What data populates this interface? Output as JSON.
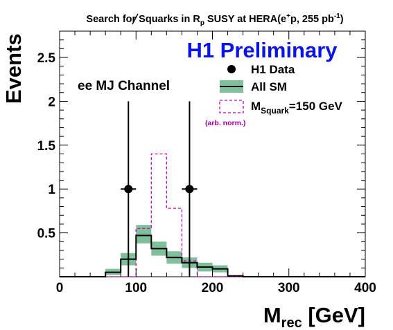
{
  "chart_data": {
    "type": "histogram",
    "title": {
      "prefix": "Search for Squarks in ",
      "rp_main": "R",
      "rp_sub": "p",
      "middle": " SUSY at HERA(e",
      "sup_plus": "+",
      "after_plus": "p, 255 pb",
      "sup_minus1": "-1",
      "end": ")"
    },
    "preliminary_label": "H1 Preliminary",
    "channel_label": "ee MJ Channel",
    "xlabel": {
      "main": "M",
      "sub": "rec",
      "unit": " [GeV]"
    },
    "ylabel": "Events",
    "xlim": [
      0,
      400
    ],
    "ylim": [
      0,
      2.8
    ],
    "xticks": [
      {
        "value": 0,
        "label": "0"
      },
      {
        "value": 100,
        "label": "100"
      },
      {
        "value": 200,
        "label": "200"
      },
      {
        "value": 300,
        "label": "300"
      },
      {
        "value": 400,
        "label": "400"
      }
    ],
    "yticks": [
      {
        "value": 0.5,
        "label": "0.5"
      },
      {
        "value": 1,
        "label": "1"
      },
      {
        "value": 1.5,
        "label": "1.5"
      },
      {
        "value": 2,
        "label": "2"
      },
      {
        "value": 2.5,
        "label": "2.5"
      }
    ],
    "legend": {
      "placement": "top-right",
      "data_label": "H1 Data",
      "sm_label": "All SM",
      "signal_label": {
        "main": "M",
        "sub": "Squark",
        "rest": "=150 GeV"
      },
      "signal_note": "(arb. norm.)"
    },
    "colors": {
      "data": "#000000",
      "sm_band": "#7fbf9a",
      "sm_line": "#000000",
      "signal": "#c000c0",
      "preliminary": "#0a14e6",
      "note": "#a000a0"
    },
    "bin_edges": [
      0,
      20,
      40,
      60,
      80,
      100,
      120,
      140,
      160,
      180,
      200,
      220,
      240,
      260,
      280,
      300,
      320,
      340,
      360,
      380,
      400
    ],
    "series": [
      {
        "name": "All SM",
        "kind": "band",
        "values": [
          0,
          0,
          0,
          0.05,
          0.2,
          0.47,
          0.32,
          0.22,
          0.16,
          0.11,
          0.09,
          0.01,
          0,
          0,
          0,
          0,
          0,
          0,
          0,
          0
        ],
        "band_low": [
          0,
          0,
          0,
          0.02,
          0.13,
          0.38,
          0.24,
          0.15,
          0.1,
          0.06,
          0.05,
          0.005,
          0,
          0,
          0,
          0,
          0,
          0,
          0,
          0
        ],
        "band_high": [
          0,
          0,
          0,
          0.09,
          0.27,
          0.59,
          0.4,
          0.29,
          0.22,
          0.16,
          0.13,
          0.015,
          0,
          0,
          0,
          0,
          0,
          0,
          0,
          0
        ]
      },
      {
        "name": "M_Squark=150 GeV",
        "kind": "dashed-step",
        "values": [
          0,
          0,
          0,
          0,
          0,
          0.55,
          1.4,
          0.78,
          0.18,
          0,
          0,
          0,
          0,
          0,
          0,
          0,
          0,
          0,
          0,
          0
        ]
      },
      {
        "name": "H1 Data",
        "kind": "points",
        "x": [
          90,
          170
        ],
        "y": [
          1,
          1
        ],
        "y_err": [
          [
            1,
            1
          ],
          [
            1,
            1
          ]
        ],
        "x_err": [
          10,
          10
        ]
      }
    ]
  }
}
